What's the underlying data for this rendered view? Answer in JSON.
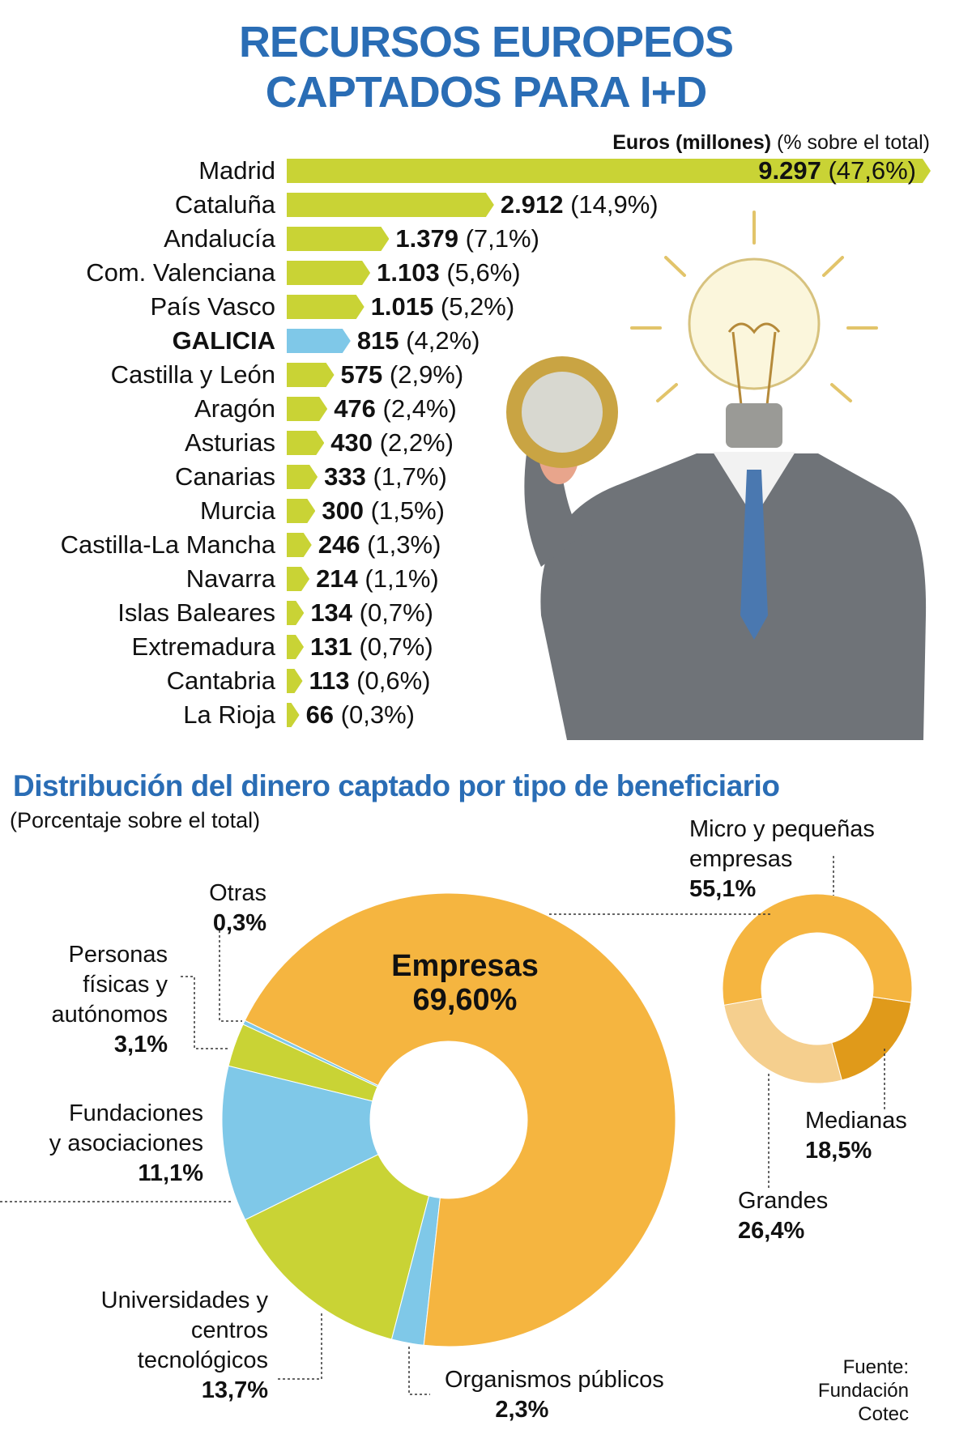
{
  "title": {
    "line1": "RECURSOS EUROPEOS",
    "line2": "CAPTADOS PARA I+D"
  },
  "colors": {
    "title": "#2a6db5",
    "bar": "#c9d335",
    "highlight": "#7fc8e8",
    "empresas": "#f5b540",
    "green": "#c9d335",
    "blue": "#7fc8e8",
    "medianas": "#e09a1a",
    "grandes": "#f5cf8e"
  },
  "chart_data": [
    {
      "type": "bar",
      "orientation": "horizontal",
      "header_bold": "Euros (millones)",
      "header_rest": "(% sobre el total)",
      "categories": [
        "Madrid",
        "Cataluña",
        "Andalucía",
        "Com. Valenciana",
        "País Vasco",
        "GALICIA",
        "Castilla y León",
        "Aragón",
        "Asturias",
        "Canarias",
        "Murcia",
        "Castilla-La Mancha",
        "Navarra",
        "Islas Baleares",
        "Extremadura",
        "Cantabria",
        "La Rioja"
      ],
      "values": [
        9297,
        2912,
        1379,
        1103,
        1015,
        815,
        575,
        476,
        430,
        333,
        300,
        246,
        214,
        134,
        131,
        113,
        66
      ],
      "value_labels": [
        "9.297",
        "2.912",
        "1.379",
        "1.103",
        "1.015",
        "815",
        "575",
        "476",
        "430",
        "333",
        "300",
        "246",
        "214",
        "134",
        "131",
        "113",
        "66"
      ],
      "pct_labels": [
        "(47,6%)",
        "(14,9%)",
        "(7,1%)",
        "(5,6%)",
        "(5,2%)",
        "(4,2%)",
        "(2,9%)",
        "(2,4%)",
        "(2,2%)",
        "(1,7%)",
        "(1,5%)",
        "(1,3%)",
        "(1,1%)",
        "(0,7%)",
        "(0,7%)",
        "(0,6%)",
        "(0,3%)"
      ],
      "highlight": "GALICIA"
    },
    {
      "type": "pie",
      "donut": true,
      "title": "Distribución del dinero captado por tipo de beneficiario",
      "subtitle": "(Porcentaje sobre el total)",
      "slices": [
        {
          "name": "Empresas",
          "value": 69.6,
          "label": "69,60%",
          "color": "#f5b540"
        },
        {
          "name": "Organismos públicos",
          "value": 2.3,
          "label": "2,3%",
          "color": "#7fc8e8"
        },
        {
          "name": "Universidades y centros tecnológicos",
          "value": 13.7,
          "label": "13,7%",
          "color": "#c9d335"
        },
        {
          "name": "Fundaciones y asociaciones",
          "value": 11.1,
          "label": "11,1%",
          "color": "#7fc8e8"
        },
        {
          "name": "Personas físicas y autónomos",
          "value": 3.1,
          "label": "3,1%",
          "color": "#c9d335"
        },
        {
          "name": "Otras",
          "value": 0.3,
          "label": "0,3%",
          "color": "#7fc8e8"
        }
      ]
    },
    {
      "type": "pie",
      "donut": true,
      "slices": [
        {
          "name": "Micro y pequeñas empresas",
          "value": 55.1,
          "label": "55,1%",
          "color": "#f5b540"
        },
        {
          "name": "Medianas",
          "value": 18.5,
          "label": "18,5%",
          "color": "#e09a1a"
        },
        {
          "name": "Grandes",
          "value": 26.4,
          "label": "26,4%",
          "color": "#f5cf8e"
        }
      ]
    }
  ],
  "labels": {
    "empresas": "Empresas",
    "empresas_pct": "69,60%",
    "otras_1": "Otras",
    "otras_pct": "0,3%",
    "personas_1": "Personas",
    "personas_2": "físicas y",
    "personas_3": "autónomos",
    "personas_pct": "3,1%",
    "fund_1": "Fundaciones",
    "fund_2": "y asociaciones",
    "fund_pct": "11,1%",
    "univ_1": "Universidades y",
    "univ_2": "centros",
    "univ_3": "tecnológicos",
    "univ_pct": "13,7%",
    "org_1": "Organismos públicos",
    "org_pct": "2,3%",
    "micro_1": "Micro y pequeñas",
    "micro_2": "empresas",
    "micro_pct": "55,1%",
    "med_1": "Medianas",
    "med_pct": "18,5%",
    "gran_1": "Grandes",
    "gran_pct": "26,4%"
  },
  "source": {
    "line1": "Fuente:",
    "line2": "Fundación",
    "line3": "Cotec"
  },
  "illustration": {
    "icons": [
      "lightbulb-icon",
      "euro-coin-icon"
    ]
  }
}
